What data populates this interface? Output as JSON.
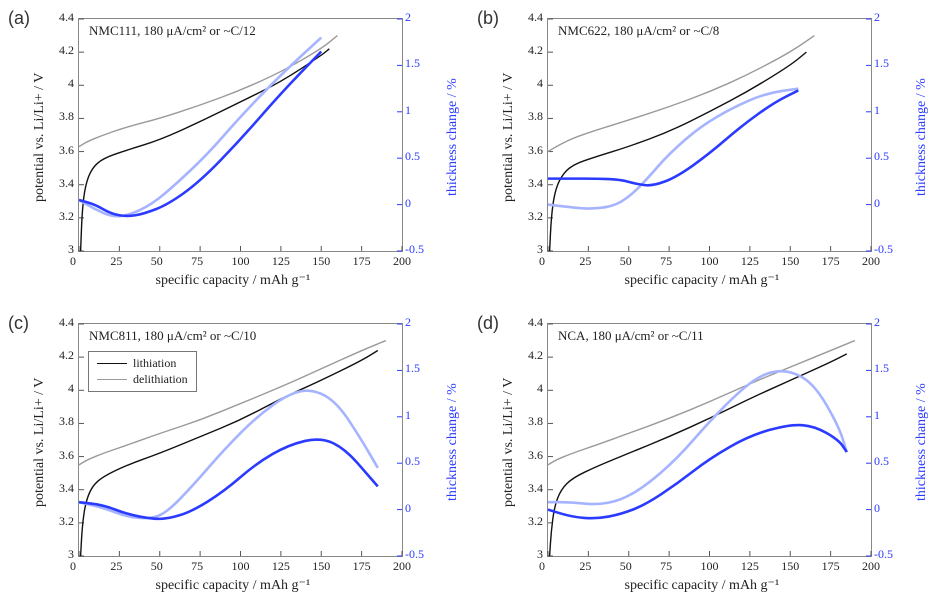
{
  "figure_background": "#ffffff",
  "plot_border_color": "#888888",
  "font_family": "Times New Roman",
  "colors": {
    "lithiation": "#111111",
    "delithiation": "#9a9a9a",
    "thickness_lithiation": "#2a3aff",
    "thickness_delithiation": "#a6b4ff",
    "right_axis": "#2a3aff"
  },
  "line_widths": {
    "potential": 1.4,
    "thickness": 2.6
  },
  "panel_letter_fontsize": 18,
  "title_fontsize": 13,
  "axis_label_fontsize": 14,
  "tick_fontsize": 12,
  "axes": {
    "x": {
      "label": "specific capacity / mAh g⁻¹",
      "lim": [
        0,
        200
      ],
      "ticks": [
        0,
        25,
        50,
        75,
        100,
        125,
        150,
        175,
        200
      ]
    },
    "y_left": {
      "label": "potential vs. Li/Li+ / V",
      "lim": [
        3.0,
        4.4
      ],
      "ticks": [
        3,
        3.2,
        3.4,
        3.6,
        3.8,
        4,
        4.2,
        4.4
      ]
    },
    "y_right": {
      "label": "thickness change / %",
      "lim": [
        -0.5,
        2.0
      ],
      "ticks": [
        -0.5,
        0,
        0.5,
        1,
        1.5,
        2
      ]
    }
  },
  "legend": {
    "items": [
      {
        "label": "lithiation",
        "color": "#111111"
      },
      {
        "label": "delithiation",
        "color": "#9a9a9a"
      }
    ]
  },
  "panels": [
    {
      "id": "a",
      "letter": "(a)",
      "title": "NMC111, 180 μA/cm² or ~C/12",
      "series": {
        "potential_lithiation": {
          "x": [
            1,
            2,
            4,
            8,
            15,
            30,
            50,
            75,
            100,
            125,
            150,
            155
          ],
          "y": [
            3.0,
            3.25,
            3.4,
            3.5,
            3.56,
            3.61,
            3.67,
            3.78,
            3.9,
            4.02,
            4.18,
            4.22
          ]
        },
        "potential_delithiation": {
          "x": [
            0,
            5,
            15,
            30,
            50,
            75,
            100,
            125,
            150,
            160
          ],
          "y": [
            3.63,
            3.66,
            3.7,
            3.75,
            3.8,
            3.88,
            3.97,
            4.08,
            4.22,
            4.3
          ]
        },
        "thickness_lithiation": {
          "x": [
            0,
            10,
            20,
            30,
            40,
            55,
            75,
            100,
            125,
            150
          ],
          "y": [
            0.05,
            0.0,
            -0.1,
            -0.13,
            -0.1,
            0.0,
            0.25,
            0.7,
            1.2,
            1.65
          ]
        },
        "thickness_delithiation": {
          "x": [
            0,
            10,
            20,
            30,
            45,
            60,
            80,
            100,
            125,
            150
          ],
          "y": [
            0.05,
            -0.05,
            -0.13,
            -0.12,
            0.0,
            0.22,
            0.55,
            0.95,
            1.4,
            1.8
          ]
        }
      }
    },
    {
      "id": "b",
      "letter": "(b)",
      "title": "NMC622, 180 μA/cm² or ~C/8",
      "series": {
        "potential_lithiation": {
          "x": [
            1,
            2,
            4,
            8,
            15,
            30,
            50,
            75,
            100,
            125,
            150,
            160
          ],
          "y": [
            3.0,
            3.2,
            3.35,
            3.45,
            3.52,
            3.57,
            3.63,
            3.72,
            3.84,
            3.97,
            4.12,
            4.2
          ]
        },
        "potential_delithiation": {
          "x": [
            0,
            5,
            15,
            30,
            50,
            75,
            100,
            125,
            150,
            165
          ],
          "y": [
            3.6,
            3.63,
            3.68,
            3.73,
            3.79,
            3.87,
            3.96,
            4.07,
            4.2,
            4.3
          ]
        },
        "thickness_lithiation": {
          "x": [
            0,
            15,
            30,
            45,
            55,
            65,
            80,
            100,
            120,
            140,
            155
          ],
          "y": [
            0.28,
            0.28,
            0.28,
            0.27,
            0.22,
            0.2,
            0.3,
            0.55,
            0.85,
            1.1,
            1.23
          ]
        },
        "thickness_delithiation": {
          "x": [
            0,
            10,
            25,
            40,
            50,
            60,
            75,
            95,
            115,
            135,
            155
          ],
          "y": [
            0.0,
            -0.02,
            -0.05,
            -0.02,
            0.08,
            0.25,
            0.55,
            0.85,
            1.05,
            1.2,
            1.25
          ]
        }
      }
    },
    {
      "id": "c",
      "letter": "(c)",
      "title": "NMC811, 180 μA/cm² or ~C/10",
      "show_legend": true,
      "series": {
        "potential_lithiation": {
          "x": [
            1,
            2,
            4,
            8,
            15,
            30,
            50,
            75,
            100,
            125,
            150,
            175,
            185
          ],
          "y": [
            3.0,
            3.18,
            3.32,
            3.42,
            3.48,
            3.55,
            3.62,
            3.72,
            3.82,
            3.95,
            4.06,
            4.18,
            4.24
          ]
        },
        "potential_delithiation": {
          "x": [
            0,
            5,
            15,
            30,
            50,
            75,
            100,
            125,
            150,
            175,
            190
          ],
          "y": [
            3.55,
            3.58,
            3.62,
            3.67,
            3.74,
            3.82,
            3.92,
            4.02,
            4.13,
            4.24,
            4.3
          ]
        },
        "thickness_lithiation": {
          "x": [
            0,
            15,
            30,
            45,
            55,
            70,
            90,
            110,
            130,
            150,
            165,
            180,
            185
          ],
          "y": [
            0.08,
            0.05,
            -0.05,
            -0.1,
            -0.1,
            -0.02,
            0.2,
            0.5,
            0.7,
            0.78,
            0.65,
            0.35,
            0.25
          ]
        },
        "thickness_delithiation": {
          "x": [
            0,
            15,
            30,
            45,
            55,
            70,
            90,
            110,
            130,
            145,
            160,
            175,
            185
          ],
          "y": [
            0.08,
            0.02,
            -0.08,
            -0.1,
            -0.02,
            0.25,
            0.65,
            1.0,
            1.25,
            1.3,
            1.15,
            0.75,
            0.45
          ]
        }
      }
    },
    {
      "id": "d",
      "letter": "(d)",
      "title": "NCA, 180 μA/cm² or ~C/11",
      "series": {
        "potential_lithiation": {
          "x": [
            1,
            2,
            4,
            8,
            15,
            30,
            50,
            75,
            100,
            125,
            150,
            175,
            185
          ],
          "y": [
            3.0,
            3.15,
            3.3,
            3.4,
            3.47,
            3.54,
            3.62,
            3.72,
            3.83,
            3.95,
            4.06,
            4.17,
            4.22
          ]
        },
        "potential_delithiation": {
          "x": [
            0,
            5,
            15,
            30,
            50,
            75,
            100,
            125,
            150,
            175,
            190
          ],
          "y": [
            3.55,
            3.58,
            3.62,
            3.67,
            3.74,
            3.83,
            3.93,
            4.04,
            4.14,
            4.24,
            4.3
          ]
        },
        "thickness_lithiation": {
          "x": [
            0,
            15,
            30,
            45,
            60,
            80,
            100,
            125,
            150,
            165,
            180,
            185
          ],
          "y": [
            0.0,
            -0.08,
            -0.1,
            -0.05,
            0.05,
            0.28,
            0.55,
            0.8,
            0.92,
            0.9,
            0.75,
            0.62
          ]
        },
        "thickness_delithiation": {
          "x": [
            0,
            15,
            30,
            45,
            60,
            80,
            100,
            120,
            135,
            150,
            165,
            180,
            185
          ],
          "y": [
            0.08,
            0.08,
            0.05,
            0.1,
            0.25,
            0.55,
            0.95,
            1.3,
            1.48,
            1.5,
            1.35,
            0.9,
            0.62
          ]
        }
      }
    }
  ]
}
